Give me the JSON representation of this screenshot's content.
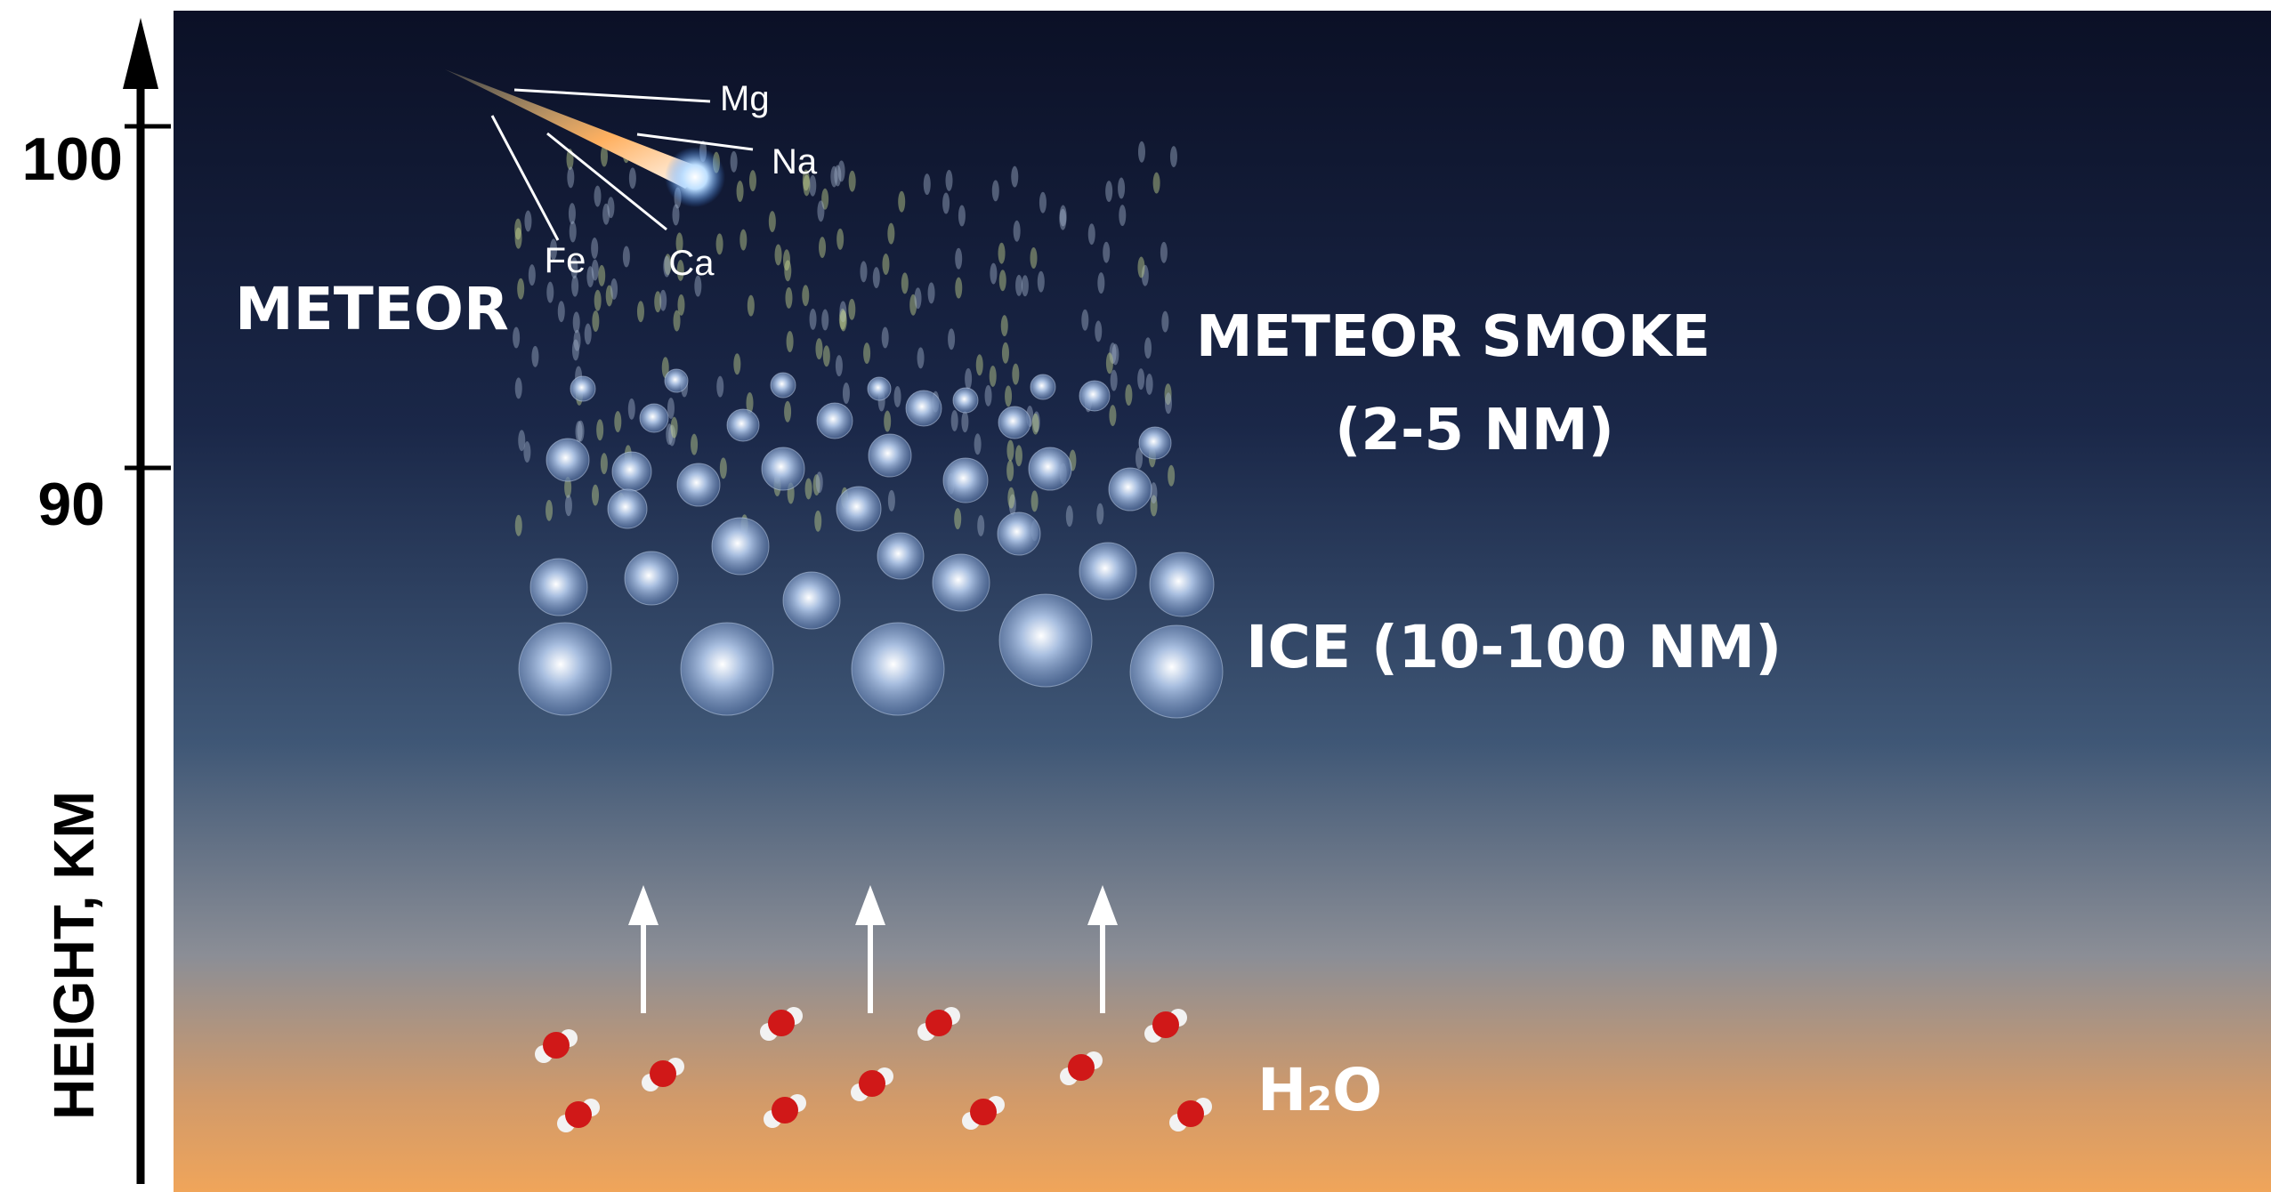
{
  "axis": {
    "label": "HEIGHT, KM",
    "ticks": [
      100,
      90
    ]
  },
  "meteor": {
    "label": "METEOR",
    "elements": [
      "Mg",
      "Na",
      "Fe",
      "Ca"
    ]
  },
  "smoke": {
    "label": "METEOR SMOKE",
    "size": "(2-5 NM)"
  },
  "ice": {
    "label": "ICE (10-100 NM)"
  },
  "water": {
    "label": "H₂O"
  }
}
